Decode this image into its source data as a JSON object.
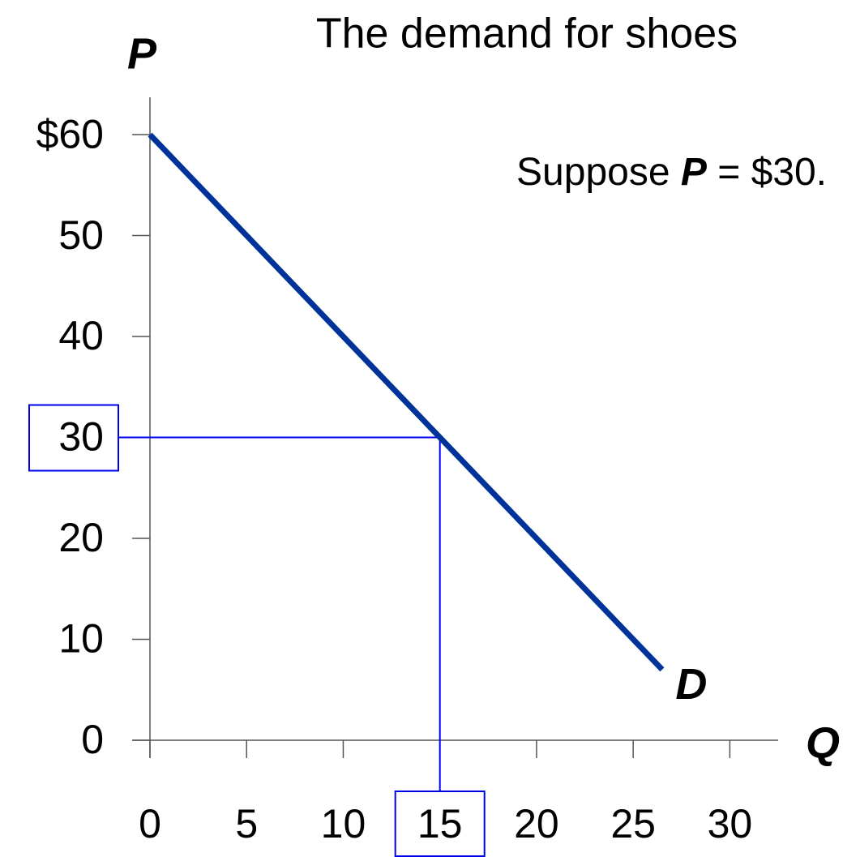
{
  "chart_data": {
    "type": "line",
    "title": "The demand for shoes",
    "y_label": "P",
    "x_label": "Q",
    "x": [
      0,
      26.5
    ],
    "series": [
      {
        "name": "D",
        "color": "#003399",
        "values": [
          60,
          7
        ]
      }
    ],
    "xlim": [
      0,
      32.5
    ],
    "ylim": [
      0,
      63.7
    ],
    "xticks": [
      0,
      5,
      10,
      15,
      20,
      25,
      30
    ],
    "yticks": [
      0,
      10,
      20,
      30,
      40,
      50,
      {
        "value": 60,
        "label": "$60"
      }
    ],
    "highlight": {
      "x": 15,
      "y": 30,
      "color": "#0000ee"
    },
    "annotation": {
      "before": "Suppose ",
      "variable": "P",
      "after": " = $30."
    }
  }
}
